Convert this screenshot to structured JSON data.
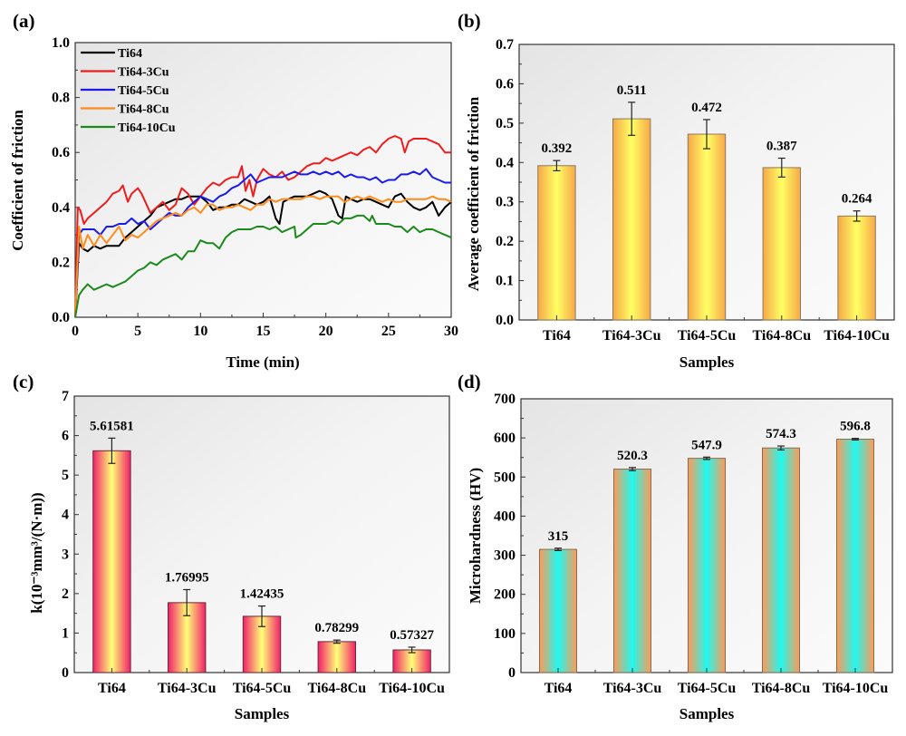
{
  "figure": {
    "panels": [
      "(a)",
      "(b)",
      "(c)",
      "(d)"
    ]
  },
  "chart_data": [
    {
      "id": "a",
      "type": "line",
      "panel_label": "(a)",
      "title": "",
      "xlabel": "Time (min)",
      "ylabel": "Coefficient of friction",
      "xlim": [
        0,
        30
      ],
      "ylim": [
        0,
        1.0
      ],
      "xticks": [
        "0",
        "5",
        "10",
        "15",
        "20",
        "25",
        "30"
      ],
      "xtick_values": [
        0,
        5,
        10,
        15,
        20,
        25,
        30
      ],
      "yticks": [
        "0.0",
        "0.2",
        "0.4",
        "0.6",
        "0.8",
        "1.0"
      ],
      "ytick_values": [
        0,
        0.2,
        0.4,
        0.6,
        0.8,
        1.0
      ],
      "grid": false,
      "legend_position": "top-left",
      "series": [
        {
          "name": "Ti64",
          "color": "#000000",
          "x": [
            0,
            0.3,
            0.6,
            1,
            1.5,
            2,
            2.5,
            3,
            3.5,
            4,
            4.5,
            5,
            5.5,
            6,
            6.5,
            7,
            7.5,
            8,
            8.5,
            9,
            9.5,
            10,
            10.5,
            11,
            11.5,
            12,
            12.5,
            13,
            13.5,
            14,
            14.5,
            15,
            15.5,
            16,
            16.3,
            16.6,
            17,
            17.5,
            18,
            18.5,
            19,
            19.5,
            20,
            20.5,
            21,
            21.3,
            21.6,
            22,
            22.5,
            23,
            23.5,
            24,
            24.5,
            25,
            25.5,
            26,
            26.5,
            27,
            27.5,
            28,
            28.5,
            29,
            29.5,
            30
          ],
          "y": [
            0,
            0.27,
            0.25,
            0.24,
            0.26,
            0.25,
            0.26,
            0.26,
            0.26,
            0.29,
            0.31,
            0.33,
            0.35,
            0.37,
            0.4,
            0.41,
            0.42,
            0.43,
            0.43,
            0.44,
            0.44,
            0.44,
            0.42,
            0.39,
            0.4,
            0.4,
            0.41,
            0.41,
            0.43,
            0.42,
            0.41,
            0.42,
            0.44,
            0.36,
            0.34,
            0.42,
            0.43,
            0.44,
            0.44,
            0.44,
            0.45,
            0.46,
            0.45,
            0.43,
            0.37,
            0.36,
            0.44,
            0.43,
            0.42,
            0.43,
            0.43,
            0.42,
            0.41,
            0.4,
            0.44,
            0.45,
            0.42,
            0.4,
            0.39,
            0.4,
            0.42,
            0.37,
            0.4,
            0.42
          ]
        },
        {
          "name": "Ti64-3Cu",
          "color": "#ee1c1c",
          "x": [
            0,
            0.2,
            0.4,
            0.7,
            1,
            1.5,
            2,
            2.5,
            3,
            3.5,
            3.8,
            4.2,
            4.5,
            5,
            5.3,
            5.7,
            6,
            6.5,
            7,
            7.5,
            8,
            8.5,
            9,
            9.5,
            10,
            10.5,
            11,
            11.5,
            12,
            12.5,
            13,
            13.3,
            13.6,
            13.9,
            14.2,
            14.5,
            15,
            15.5,
            16,
            16.5,
            17,
            17.5,
            18,
            18.5,
            19,
            19.5,
            20,
            20.5,
            21,
            21.5,
            22,
            22.5,
            23,
            23.5,
            24,
            24.5,
            25,
            25.5,
            26,
            26.3,
            26.6,
            27,
            27.5,
            28,
            28.5,
            29,
            29.5,
            30
          ],
          "y": [
            0,
            0.4,
            0.39,
            0.34,
            0.36,
            0.38,
            0.4,
            0.42,
            0.45,
            0.46,
            0.48,
            0.42,
            0.45,
            0.47,
            0.45,
            0.41,
            0.38,
            0.4,
            0.42,
            0.39,
            0.41,
            0.47,
            0.45,
            0.41,
            0.44,
            0.47,
            0.49,
            0.48,
            0.5,
            0.51,
            0.51,
            0.55,
            0.46,
            0.5,
            0.44,
            0.5,
            0.54,
            0.52,
            0.51,
            0.53,
            0.5,
            0.51,
            0.53,
            0.55,
            0.56,
            0.56,
            0.58,
            0.57,
            0.58,
            0.59,
            0.6,
            0.59,
            0.61,
            0.62,
            0.6,
            0.63,
            0.65,
            0.66,
            0.65,
            0.6,
            0.64,
            0.65,
            0.65,
            0.65,
            0.64,
            0.63,
            0.6,
            0.6
          ]
        },
        {
          "name": "Ti64-5Cu",
          "color": "#1a1aee",
          "x": [
            0,
            0.3,
            0.6,
            1,
            1.5,
            2,
            2.5,
            3,
            3.5,
            4,
            4.5,
            5,
            5.5,
            6,
            6.5,
            7,
            7.5,
            8,
            8.5,
            9,
            9.5,
            10,
            10.5,
            11,
            11.5,
            12,
            12.5,
            13,
            13.5,
            14,
            14.5,
            15,
            15.5,
            16,
            16.5,
            17,
            17.5,
            18,
            18.5,
            19,
            19.5,
            20,
            20.5,
            21,
            21.5,
            22,
            22.5,
            23,
            23.5,
            24,
            24.5,
            25,
            25.5,
            26,
            26.5,
            27,
            27.5,
            28,
            28.5,
            29,
            29.5,
            30
          ],
          "y": [
            0,
            0.3,
            0.32,
            0.32,
            0.32,
            0.3,
            0.33,
            0.33,
            0.34,
            0.34,
            0.36,
            0.34,
            0.35,
            0.32,
            0.34,
            0.36,
            0.38,
            0.37,
            0.37,
            0.4,
            0.42,
            0.44,
            0.43,
            0.42,
            0.44,
            0.45,
            0.47,
            0.48,
            0.5,
            0.52,
            0.49,
            0.5,
            0.51,
            0.51,
            0.51,
            0.52,
            0.53,
            0.52,
            0.52,
            0.53,
            0.52,
            0.53,
            0.52,
            0.53,
            0.51,
            0.52,
            0.51,
            0.51,
            0.5,
            0.51,
            0.49,
            0.5,
            0.5,
            0.52,
            0.52,
            0.53,
            0.52,
            0.54,
            0.51,
            0.5,
            0.49,
            0.49
          ]
        },
        {
          "name": "Ti64-8Cu",
          "color": "#ff8c1a",
          "x": [
            0,
            0.3,
            0.6,
            1,
            1.5,
            2,
            2.5,
            3,
            3.5,
            4,
            4.5,
            5,
            5.5,
            6,
            6.5,
            7,
            7.5,
            8,
            8.5,
            9,
            9.5,
            10,
            10.5,
            11,
            11.5,
            12,
            12.5,
            13,
            13.5,
            14,
            14.5,
            15,
            15.5,
            16,
            16.5,
            17,
            17.5,
            18,
            18.5,
            19,
            19.5,
            20,
            20.5,
            21,
            21.5,
            22,
            22.5,
            23,
            23.5,
            24,
            24.5,
            25,
            25.5,
            26,
            26.5,
            27,
            27.5,
            28,
            28.5,
            29,
            29.5,
            30
          ],
          "y": [
            0,
            0.33,
            0.25,
            0.3,
            0.26,
            0.3,
            0.27,
            0.3,
            0.33,
            0.28,
            0.3,
            0.29,
            0.31,
            0.33,
            0.35,
            0.36,
            0.37,
            0.38,
            0.37,
            0.39,
            0.4,
            0.38,
            0.41,
            0.41,
            0.39,
            0.4,
            0.4,
            0.41,
            0.4,
            0.39,
            0.41,
            0.41,
            0.43,
            0.42,
            0.43,
            0.43,
            0.43,
            0.43,
            0.44,
            0.44,
            0.43,
            0.44,
            0.44,
            0.44,
            0.42,
            0.43,
            0.44,
            0.43,
            0.44,
            0.43,
            0.42,
            0.43,
            0.42,
            0.42,
            0.43,
            0.43,
            0.43,
            0.43,
            0.44,
            0.43,
            0.43,
            0.42
          ]
        },
        {
          "name": "Ti64-10Cu",
          "color": "#1a8a1a",
          "x": [
            0,
            0.3,
            0.6,
            1,
            1.5,
            2,
            2.5,
            3,
            3.5,
            4,
            4.5,
            5,
            5.5,
            6,
            6.5,
            7,
            7.5,
            8,
            8.5,
            9,
            9.5,
            10,
            10.5,
            11,
            11.5,
            12,
            12.5,
            13,
            13.5,
            14,
            14.5,
            15,
            15.5,
            16,
            16.5,
            17,
            17.5,
            17.6,
            18,
            18.5,
            19,
            19.5,
            20,
            20.5,
            21,
            21.5,
            22,
            22.5,
            23,
            23.5,
            23.7,
            24,
            24.5,
            25,
            25.5,
            26,
            26.5,
            27,
            27.5,
            28,
            28.5,
            29,
            29.5,
            30
          ],
          "y": [
            0,
            0.08,
            0.1,
            0.12,
            0.1,
            0.11,
            0.12,
            0.11,
            0.12,
            0.13,
            0.15,
            0.17,
            0.18,
            0.2,
            0.19,
            0.21,
            0.22,
            0.23,
            0.21,
            0.24,
            0.24,
            0.28,
            0.27,
            0.27,
            0.25,
            0.29,
            0.31,
            0.32,
            0.32,
            0.32,
            0.33,
            0.33,
            0.32,
            0.33,
            0.31,
            0.32,
            0.33,
            0.29,
            0.3,
            0.32,
            0.34,
            0.34,
            0.34,
            0.35,
            0.34,
            0.36,
            0.36,
            0.37,
            0.37,
            0.35,
            0.37,
            0.34,
            0.34,
            0.34,
            0.33,
            0.33,
            0.31,
            0.33,
            0.31,
            0.32,
            0.32,
            0.31,
            0.3,
            0.29
          ]
        }
      ]
    },
    {
      "id": "b",
      "type": "bar",
      "panel_label": "(b)",
      "title": "",
      "xlabel": "Samples",
      "ylabel": "Average coefficient of friction",
      "categories": [
        "Ti64",
        "Ti64-3Cu",
        "Ti64-5Cu",
        "Ti64-8Cu",
        "Ti64-10Cu"
      ],
      "values": [
        0.392,
        0.511,
        0.472,
        0.387,
        0.264
      ],
      "value_labels": [
        "0.392",
        "0.511",
        "0.472",
        "0.387",
        "0.264"
      ],
      "errors": [
        0.013,
        0.042,
        0.037,
        0.024,
        0.013
      ],
      "ylim": [
        0,
        0.7
      ],
      "yticks": [
        "0.0",
        "0.1",
        "0.2",
        "0.3",
        "0.4",
        "0.5",
        "0.6",
        "0.7"
      ],
      "ytick_values": [
        0,
        0.1,
        0.2,
        0.3,
        0.4,
        0.5,
        0.6,
        0.7
      ],
      "grid": false,
      "bar_colors": {
        "edge": "#f4a040",
        "center": "#ffff60"
      }
    },
    {
      "id": "c",
      "type": "bar",
      "panel_label": "(c)",
      "title": "",
      "xlabel": "Samples",
      "ylabel": "k(10⁻³mm³/(N·m))",
      "categories": [
        "Ti64",
        "Ti64-3Cu",
        "Ti64-5Cu",
        "Ti64-8Cu",
        "Ti64-10Cu"
      ],
      "values": [
        5.61581,
        1.76995,
        1.42435,
        0.78299,
        0.57327
      ],
      "value_labels": [
        "5.61581",
        "1.76995",
        "1.42435",
        "0.78299",
        "0.57327"
      ],
      "errors": [
        0.32,
        0.33,
        0.26,
        0.04,
        0.07
      ],
      "ylim": [
        0,
        7
      ],
      "yticks": [
        "0",
        "1",
        "2",
        "3",
        "4",
        "5",
        "6",
        "7"
      ],
      "ytick_values": [
        0,
        1,
        2,
        3,
        4,
        5,
        6,
        7
      ],
      "grid": false,
      "bar_colors": {
        "edge": "#f0206a",
        "center": "#ffff70"
      }
    },
    {
      "id": "d",
      "type": "bar",
      "panel_label": "(d)",
      "title": "",
      "xlabel": "Samples",
      "ylabel": "Microhardness (HV)",
      "categories": [
        "Ti64",
        "Ti64-3Cu",
        "Ti64-5Cu",
        "Ti64-8Cu",
        "Ti64-10Cu"
      ],
      "values": [
        315,
        520.3,
        547.9,
        574.3,
        596.8
      ],
      "value_labels": [
        "315",
        "520.3",
        "547.9",
        "574.3",
        "596.8"
      ],
      "errors": [
        3,
        4,
        3,
        5,
        2
      ],
      "ylim": [
        0,
        700
      ],
      "yticks": [
        "0",
        "100",
        "200",
        "300",
        "400",
        "500",
        "600",
        "700"
      ],
      "ytick_values": [
        0,
        100,
        200,
        300,
        400,
        500,
        600,
        700
      ],
      "grid": false,
      "bar_colors": {
        "edge": "#ff9a5a",
        "center": "#20f8f0"
      }
    }
  ]
}
